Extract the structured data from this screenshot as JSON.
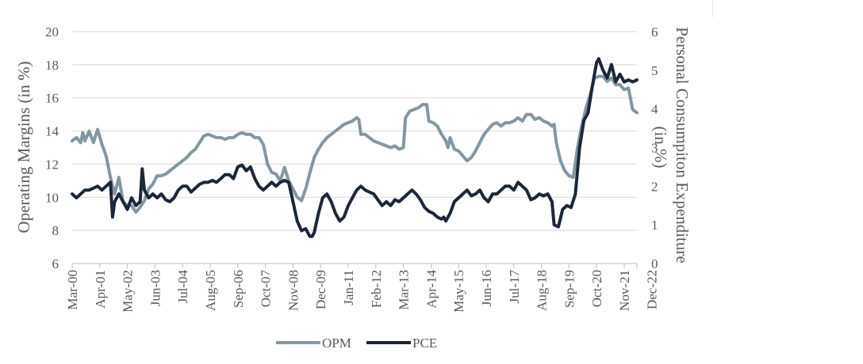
{
  "chart_data": {
    "type": "line",
    "title": "",
    "x_labels": [
      "Mar-00",
      "Apr-01",
      "May-02",
      "Jun-03",
      "Jul-04",
      "Aug-05",
      "Sep-06",
      "Oct-07",
      "Nov-08",
      "Dec-09",
      "Jan-11",
      "Feb-12",
      "Mar-13",
      "Apr-14",
      "May-15",
      "Jun-16",
      "Jul-17",
      "Aug-18",
      "Sep-19",
      "Oct-20",
      "Nov-21",
      "Dec-22"
    ],
    "ylabel": "Operating Margins (in %)",
    "ylim": [
      6,
      20
    ],
    "y_ticks": [
      "6",
      "8",
      "10",
      "12",
      "14",
      "16",
      "18",
      "20"
    ],
    "y2label_lines": [
      "Personal Consumpiton Expenditure",
      "(in %)"
    ],
    "y2lim": [
      0,
      6
    ],
    "y2_ticks": [
      "0",
      "1",
      "2",
      "3",
      "4",
      "5",
      "6"
    ],
    "grid": "horizontal",
    "legend_position": "bottom",
    "series": [
      {
        "name": "OPM",
        "axis": "left",
        "color": "#8497a1",
        "points": [
          [
            0,
            13.4
          ],
          [
            2,
            13.6
          ],
          [
            4,
            13.3
          ],
          [
            5,
            13.9
          ],
          [
            6,
            13.4
          ],
          [
            8,
            14.0
          ],
          [
            10,
            13.3
          ],
          [
            12,
            14.1
          ],
          [
            14,
            13.2
          ],
          [
            16,
            12.5
          ],
          [
            18,
            11.2
          ],
          [
            20,
            10.2
          ],
          [
            22,
            11.2
          ],
          [
            24,
            9.7
          ],
          [
            26,
            9.5
          ],
          [
            28,
            9.5
          ],
          [
            30,
            9.1
          ],
          [
            32,
            9.4
          ],
          [
            34,
            9.8
          ],
          [
            36,
            10.5
          ],
          [
            38,
            10.8
          ],
          [
            40,
            11.3
          ],
          [
            42,
            11.3
          ],
          [
            44,
            11.4
          ],
          [
            46,
            11.6
          ],
          [
            48,
            11.8
          ],
          [
            50,
            12.0
          ],
          [
            52,
            12.2
          ],
          [
            54,
            12.4
          ],
          [
            56,
            12.7
          ],
          [
            58,
            12.9
          ],
          [
            60,
            13.3
          ],
          [
            62,
            13.7
          ],
          [
            64,
            13.8
          ],
          [
            66,
            13.7
          ],
          [
            68,
            13.6
          ],
          [
            70,
            13.6
          ],
          [
            72,
            13.5
          ],
          [
            74,
            13.6
          ],
          [
            76,
            13.6
          ],
          [
            78,
            13.8
          ],
          [
            80,
            13.9
          ],
          [
            82,
            13.8
          ],
          [
            84,
            13.8
          ],
          [
            86,
            13.6
          ],
          [
            88,
            13.6
          ],
          [
            90,
            13.2
          ],
          [
            92,
            12.0
          ],
          [
            94,
            11.5
          ],
          [
            96,
            11.4
          ],
          [
            98,
            11.0
          ],
          [
            100,
            11.8
          ],
          [
            102,
            11.0
          ],
          [
            104,
            10.5
          ],
          [
            106,
            10.0
          ],
          [
            108,
            9.8
          ],
          [
            110,
            10.5
          ],
          [
            112,
            11.5
          ],
          [
            114,
            12.4
          ],
          [
            116,
            12.9
          ],
          [
            118,
            13.3
          ],
          [
            120,
            13.6
          ],
          [
            122,
            13.8
          ],
          [
            124,
            14.0
          ],
          [
            126,
            14.2
          ],
          [
            128,
            14.4
          ],
          [
            130,
            14.5
          ],
          [
            132,
            14.6
          ],
          [
            134,
            14.8
          ],
          [
            135,
            14.7
          ],
          [
            136,
            13.8
          ],
          [
            138,
            13.8
          ],
          [
            140,
            13.6
          ],
          [
            142,
            13.4
          ],
          [
            144,
            13.3
          ],
          [
            146,
            13.2
          ],
          [
            148,
            13.1
          ],
          [
            150,
            13.0
          ],
          [
            152,
            13.1
          ],
          [
            154,
            12.9
          ],
          [
            156,
            13.0
          ],
          [
            157,
            14.8
          ],
          [
            159,
            15.2
          ],
          [
            161,
            15.3
          ],
          [
            163,
            15.4
          ],
          [
            165,
            15.6
          ],
          [
            167,
            15.6
          ],
          [
            168,
            14.6
          ],
          [
            170,
            14.5
          ],
          [
            172,
            14.3
          ],
          [
            174,
            13.8
          ],
          [
            176,
            13.4
          ],
          [
            177,
            13.0
          ],
          [
            178,
            13.6
          ],
          [
            180,
            12.9
          ],
          [
            182,
            12.8
          ],
          [
            184,
            12.5
          ],
          [
            186,
            12.2
          ],
          [
            188,
            12.4
          ],
          [
            190,
            12.8
          ],
          [
            192,
            13.3
          ],
          [
            194,
            13.8
          ],
          [
            196,
            14.1
          ],
          [
            198,
            14.4
          ],
          [
            200,
            14.5
          ],
          [
            202,
            14.3
          ],
          [
            204,
            14.5
          ],
          [
            206,
            14.5
          ],
          [
            208,
            14.6
          ],
          [
            210,
            14.8
          ],
          [
            212,
            14.6
          ],
          [
            214,
            15.0
          ],
          [
            216,
            15.0
          ],
          [
            218,
            14.7
          ],
          [
            220,
            14.8
          ],
          [
            222,
            14.6
          ],
          [
            224,
            14.5
          ],
          [
            226,
            14.3
          ],
          [
            227,
            14.4
          ],
          [
            228,
            13.3
          ],
          [
            230,
            12.2
          ],
          [
            232,
            11.6
          ],
          [
            234,
            11.3
          ],
          [
            236,
            11.2
          ],
          [
            238,
            13.0
          ],
          [
            240,
            14.3
          ],
          [
            242,
            15.4
          ],
          [
            244,
            16.2
          ],
          [
            246,
            17.2
          ],
          [
            248,
            17.3
          ],
          [
            250,
            17.3
          ],
          [
            252,
            17.0
          ],
          [
            254,
            17.2
          ],
          [
            256,
            16.8
          ],
          [
            258,
            16.8
          ],
          [
            260,
            16.5
          ],
          [
            262,
            16.6
          ],
          [
            264,
            15.3
          ],
          [
            266,
            15.1
          ]
        ]
      },
      {
        "name": "PCE",
        "axis": "right",
        "color": "#1c2738",
        "points": [
          [
            0,
            1.8
          ],
          [
            2,
            1.7
          ],
          [
            4,
            1.8
          ],
          [
            6,
            1.9
          ],
          [
            8,
            1.9
          ],
          [
            10,
            1.95
          ],
          [
            12,
            2.0
          ],
          [
            14,
            1.9
          ],
          [
            16,
            2.0
          ],
          [
            18,
            2.1
          ],
          [
            19,
            1.2
          ],
          [
            20,
            1.6
          ],
          [
            22,
            1.8
          ],
          [
            24,
            1.6
          ],
          [
            26,
            1.4
          ],
          [
            28,
            1.7
          ],
          [
            30,
            1.5
          ],
          [
            32,
            1.6
          ],
          [
            33,
            2.45
          ],
          [
            34,
            1.9
          ],
          [
            36,
            1.7
          ],
          [
            38,
            1.8
          ],
          [
            40,
            1.7
          ],
          [
            42,
            1.8
          ],
          [
            44,
            1.65
          ],
          [
            46,
            1.6
          ],
          [
            48,
            1.7
          ],
          [
            50,
            1.9
          ],
          [
            52,
            2.0
          ],
          [
            54,
            2.0
          ],
          [
            56,
            1.85
          ],
          [
            58,
            1.95
          ],
          [
            60,
            2.05
          ],
          [
            62,
            2.1
          ],
          [
            64,
            2.1
          ],
          [
            66,
            2.15
          ],
          [
            68,
            2.1
          ],
          [
            70,
            2.2
          ],
          [
            72,
            2.3
          ],
          [
            74,
            2.3
          ],
          [
            76,
            2.2
          ],
          [
            78,
            2.5
          ],
          [
            80,
            2.55
          ],
          [
            82,
            2.4
          ],
          [
            84,
            2.5
          ],
          [
            86,
            2.2
          ],
          [
            88,
            2.0
          ],
          [
            90,
            1.9
          ],
          [
            92,
            2.0
          ],
          [
            94,
            2.1
          ],
          [
            96,
            2.0
          ],
          [
            98,
            2.1
          ],
          [
            100,
            2.15
          ],
          [
            102,
            2.1
          ],
          [
            104,
            1.6
          ],
          [
            106,
            1.1
          ],
          [
            108,
            0.85
          ],
          [
            110,
            0.9
          ],
          [
            112,
            0.7
          ],
          [
            113,
            0.7
          ],
          [
            114,
            0.8
          ],
          [
            116,
            1.3
          ],
          [
            118,
            1.7
          ],
          [
            120,
            1.8
          ],
          [
            122,
            1.6
          ],
          [
            124,
            1.3
          ],
          [
            126,
            1.1
          ],
          [
            128,
            1.2
          ],
          [
            130,
            1.5
          ],
          [
            132,
            1.7
          ],
          [
            134,
            1.9
          ],
          [
            136,
            2.0
          ],
          [
            138,
            1.9
          ],
          [
            140,
            1.85
          ],
          [
            142,
            1.8
          ],
          [
            144,
            1.65
          ],
          [
            146,
            1.5
          ],
          [
            148,
            1.6
          ],
          [
            150,
            1.5
          ],
          [
            152,
            1.65
          ],
          [
            154,
            1.6
          ],
          [
            156,
            1.7
          ],
          [
            158,
            1.8
          ],
          [
            160,
            1.9
          ],
          [
            162,
            1.8
          ],
          [
            164,
            1.65
          ],
          [
            166,
            1.45
          ],
          [
            168,
            1.35
          ],
          [
            170,
            1.3
          ],
          [
            172,
            1.2
          ],
          [
            174,
            1.15
          ],
          [
            175,
            1.2
          ],
          [
            176,
            1.1
          ],
          [
            178,
            1.3
          ],
          [
            180,
            1.6
          ],
          [
            182,
            1.7
          ],
          [
            184,
            1.8
          ],
          [
            186,
            1.9
          ],
          [
            188,
            1.75
          ],
          [
            190,
            1.8
          ],
          [
            192,
            1.9
          ],
          [
            194,
            1.7
          ],
          [
            196,
            1.6
          ],
          [
            198,
            1.8
          ],
          [
            200,
            1.8
          ],
          [
            202,
            1.9
          ],
          [
            204,
            2.0
          ],
          [
            206,
            2.0
          ],
          [
            208,
            1.9
          ],
          [
            210,
            2.1
          ],
          [
            212,
            2.0
          ],
          [
            214,
            1.9
          ],
          [
            216,
            1.65
          ],
          [
            218,
            1.7
          ],
          [
            220,
            1.8
          ],
          [
            222,
            1.75
          ],
          [
            224,
            1.8
          ],
          [
            226,
            1.6
          ],
          [
            227,
            1.0
          ],
          [
            229,
            0.95
          ],
          [
            231,
            1.4
          ],
          [
            233,
            1.5
          ],
          [
            235,
            1.45
          ],
          [
            237,
            1.8
          ],
          [
            239,
            3.0
          ],
          [
            241,
            3.7
          ],
          [
            243,
            3.9
          ],
          [
            245,
            4.6
          ],
          [
            247,
            5.2
          ],
          [
            248,
            5.3
          ],
          [
            250,
            5.0
          ],
          [
            252,
            4.8
          ],
          [
            254,
            5.15
          ],
          [
            256,
            4.7
          ],
          [
            258,
            4.9
          ],
          [
            260,
            4.7
          ],
          [
            262,
            4.75
          ],
          [
            264,
            4.7
          ],
          [
            266,
            4.75
          ]
        ]
      }
    ]
  }
}
